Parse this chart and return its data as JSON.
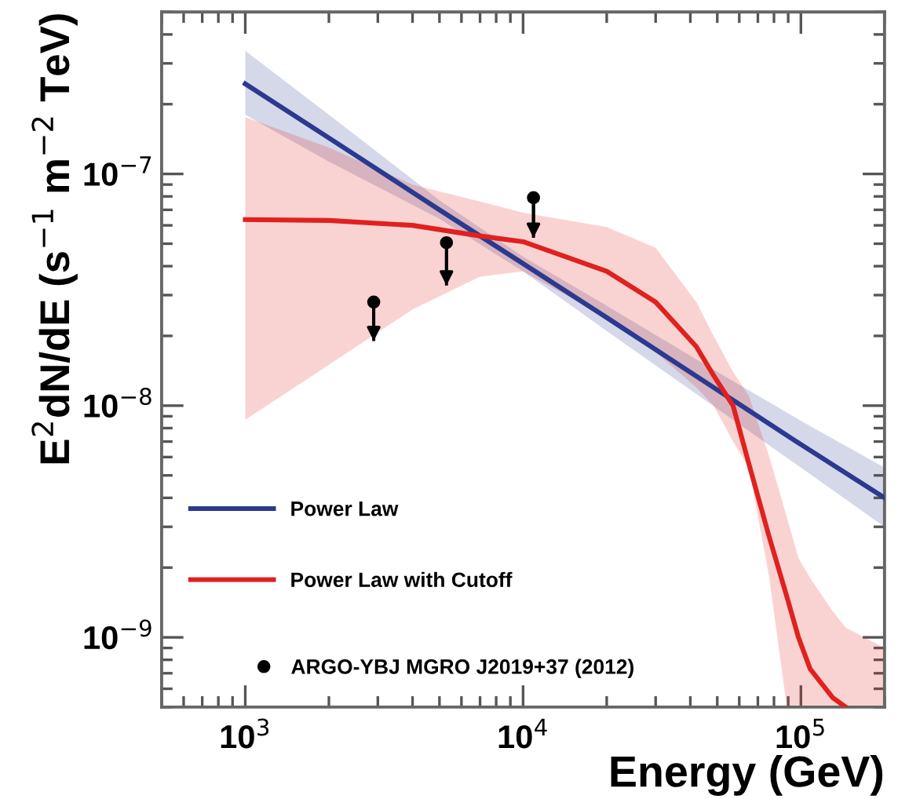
{
  "chart_data": {
    "type": "line",
    "xlabel": "Energy (GeV)",
    "ylabel": "E$^{2}$dN/dE (s$^{−1}$ m$^{−2}$ TeV)",
    "log": "xy",
    "xlim": [
      500,
      200000
    ],
    "ylim": [
      5e-10,
      5e-07
    ],
    "xticks": [
      {
        "value": 1000,
        "label": "10$^{3}$"
      },
      {
        "value": 10000,
        "label": "10$^{4}$"
      },
      {
        "value": 100000,
        "label": "10$^{5}$"
      }
    ],
    "yticks": [
      {
        "value": 1e-09,
        "label": "10$^{−9}$"
      },
      {
        "value": 1e-08,
        "label": "10$^{−8}$"
      },
      {
        "value": 1e-07,
        "label": "10$^{−7}$"
      }
    ],
    "legend": "bottom left",
    "grid": false,
    "series": [
      {
        "name": "Power Law",
        "color": "#2b3a8f",
        "x": [
          1000,
          2000,
          5000,
          10000,
          20000,
          50000,
          100000,
          200000
        ],
        "values": [
          2.45e-07,
          1.43e-07,
          7e-08,
          4.1e-08,
          2.4e-08,
          1.17e-08,
          6.8e-09,
          4e-09
        ],
        "lower": [
          1.8e-07,
          1.13e-07,
          6.4e-08,
          3.8e-08,
          2.1e-08,
          9.7e-09,
          5.4e-09,
          3e-09
        ],
        "upper": [
          3.4e-07,
          1.8e-07,
          7.7e-08,
          4.4e-08,
          2.7e-08,
          1.4e-08,
          8.6e-09,
          5.4e-09
        ]
      },
      {
        "name": "Power Law with Cutoff",
        "color": "#e0211f",
        "x": [
          1000,
          2000,
          4000,
          7000,
          10000,
          20000,
          30000,
          42000,
          48500,
          57000,
          65000,
          77000,
          89000,
          98000,
          108000,
          130000,
          145000,
          200000
        ],
        "values": [
          6.35e-08,
          6.3e-08,
          6e-08,
          5.4e-08,
          5.1e-08,
          3.8e-08,
          2.8e-08,
          1.8e-08,
          1.35e-08,
          1e-08,
          5.6e-09,
          2.7e-09,
          1.5e-09,
          1e-09,
          7.3e-10,
          5.5e-10,
          5e-10,
          null
        ],
        "lower": [
          8.7e-09,
          1.5e-08,
          2.6e-08,
          3.6e-08,
          3.8e-08,
          2.4e-08,
          1.7e-08,
          1.2e-08,
          1e-08,
          7e-09,
          5.4e-09,
          1.8e-09,
          5e-10,
          5e-10,
          5e-10,
          5e-10,
          5e-10,
          5e-10
        ],
        "upper": [
          1.76e-07,
          1.3e-07,
          9e-08,
          7.6e-08,
          6.8e-08,
          5.9e-08,
          4.8e-08,
          2.8e-08,
          2e-08,
          1.4e-08,
          1.1e-08,
          6e-09,
          3.3e-09,
          2.2e-09,
          1.8e-09,
          1.3e-09,
          1.1e-09,
          9e-10
        ]
      },
      {
        "name": "ARGO-YBJ MGRO J2019+37 (2012)",
        "type": "scatter",
        "color": "#000000",
        "marker": "circle",
        "x": [
          2900,
          5300,
          10900
        ],
        "values": [
          2.8e-08,
          5.05e-08,
          7.9e-08
        ],
        "errors": [
          [
            1.9e-08,
            2.8e-08
          ],
          [
            3.3e-08,
            5.05e-08
          ],
          [
            5.3e-08,
            7.9e-08
          ]
        ]
      }
    ]
  }
}
